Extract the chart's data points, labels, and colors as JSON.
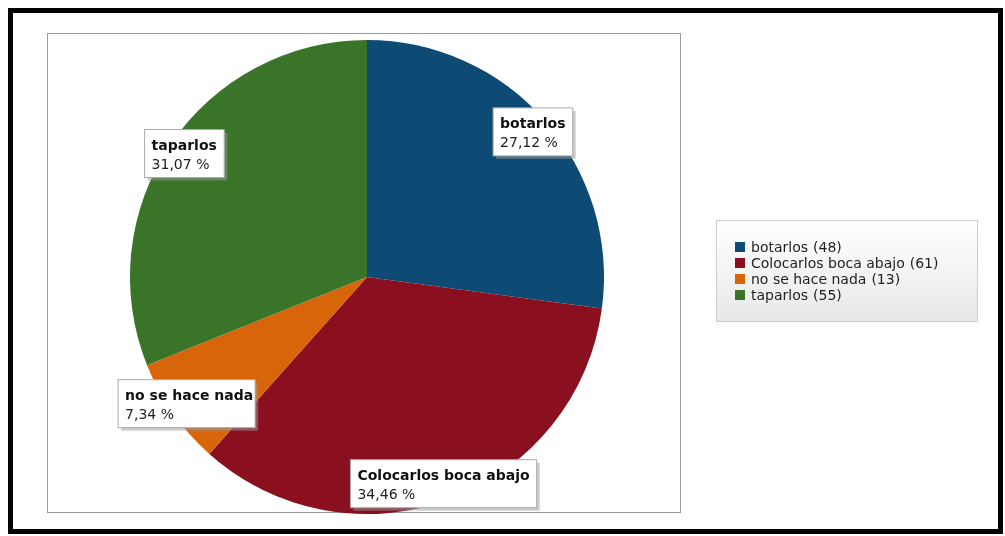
{
  "chart_data": {
    "type": "pie",
    "categories": [
      "botarlos",
      "Colocarlos boca abajo",
      "no se hace nada",
      "taparlos"
    ],
    "values": [
      27.12,
      34.46,
      7.34,
      31.07
    ],
    "colors": [
      "#0d4a74",
      "#8a1020",
      "#d9650b",
      "#3a7428"
    ],
    "value_labels": [
      "27,12 %",
      "34,46 %",
      "7,34 %",
      "31,07 %"
    ],
    "annotations": [
      "(48)",
      "(61)",
      "(13)",
      "(55)"
    ],
    "legend": "right"
  }
}
